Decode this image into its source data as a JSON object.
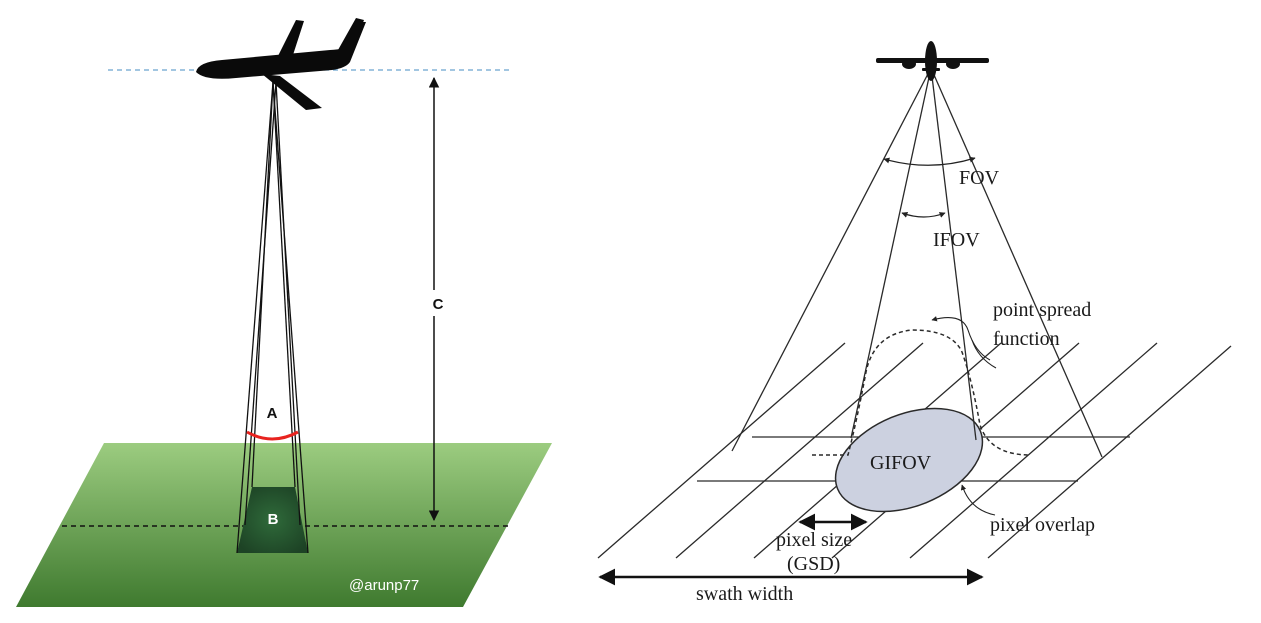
{
  "left_diagram": {
    "label_a": "A",
    "label_b": "B",
    "label_c": "C",
    "watermark": "@arunp77",
    "colors": {
      "ground_light": "#9ccc80",
      "ground_dark": "#3f7a2f",
      "footprint": "#24502c",
      "angle_arc": "#e8231f",
      "horizon_line": "#6aa3cf",
      "aircraft": "#0a0a0a"
    }
  },
  "right_diagram": {
    "fov_label": "FOV",
    "ifov_label": "IFOV",
    "psf_label_line1": "point spread",
    "psf_label_line2": "function",
    "gifov_label": "GIFOV",
    "pixel_overlap_label": "pixel overlap",
    "pixel_size_line1": "pixel size",
    "pixel_size_line2": "(GSD)",
    "swath_width_label": "swath width",
    "colors": {
      "gifov_fill": "#ccd1e0",
      "line": "#2a2a2a"
    }
  }
}
